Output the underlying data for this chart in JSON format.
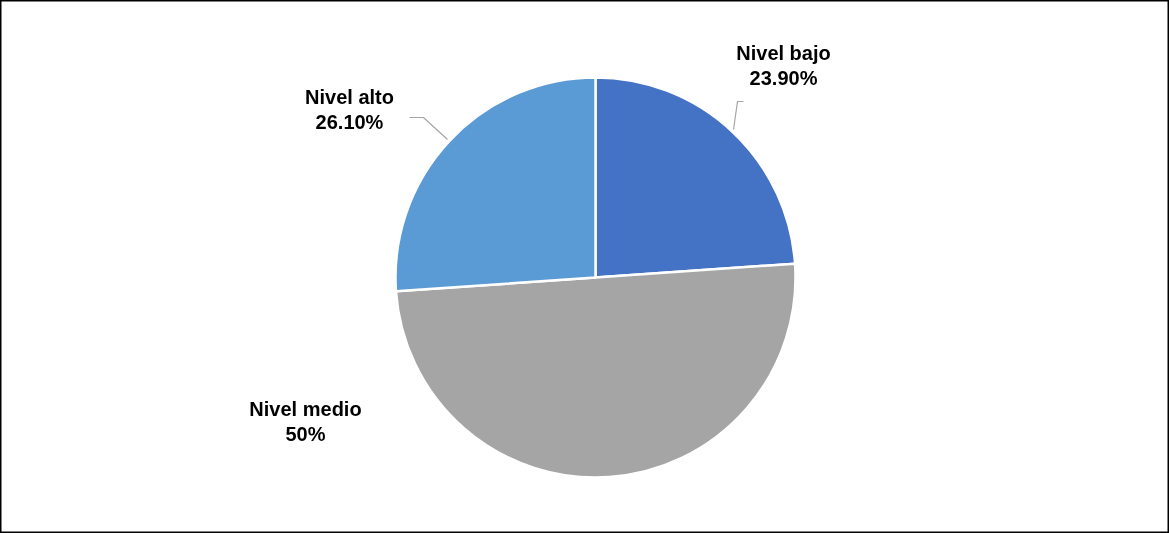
{
  "chart_data": {
    "type": "pie",
    "categories": [
      "Nivel bajo",
      "Nivel medio",
      "Nivel alto"
    ],
    "values": [
      23.9,
      50,
      26.1
    ],
    "colors": [
      "#4472c4",
      "#a5a5a5",
      "#5b9bd5"
    ],
    "value_labels": [
      "23.90%",
      "50%",
      "26.10%"
    ]
  }
}
